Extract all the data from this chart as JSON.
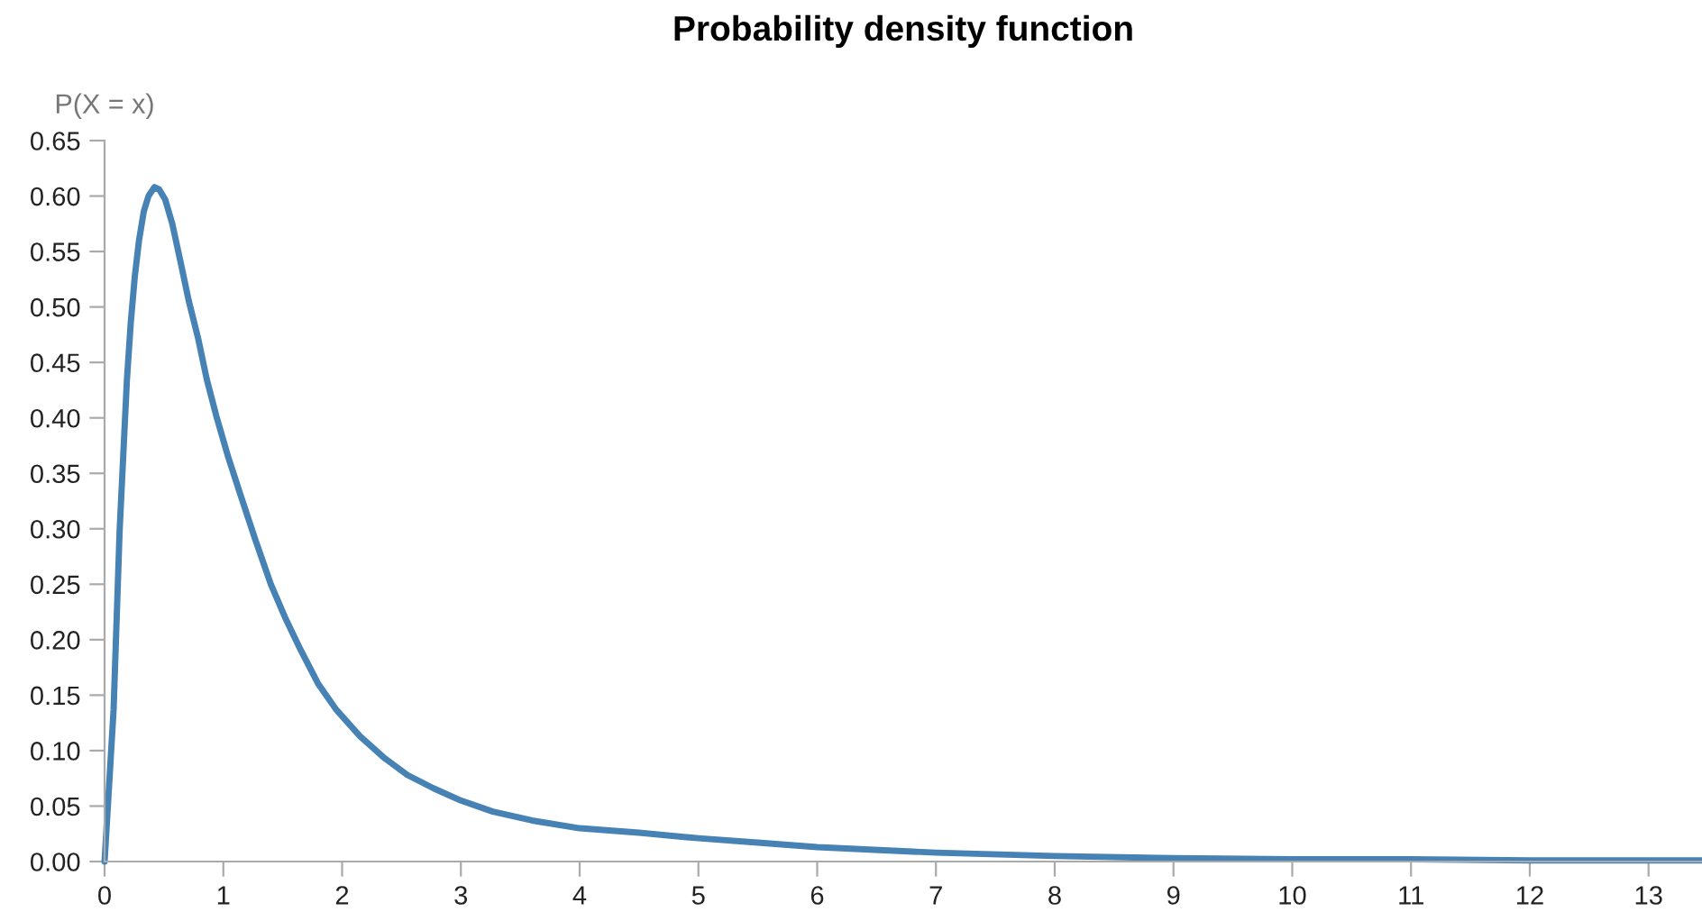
{
  "chart_data": {
    "type": "line",
    "title": "Probability density function",
    "ylabel": "P(X = x)",
    "series": [
      {
        "color": "#4682b4",
        "x": [
          0,
          0.076,
          0.127,
          0.188,
          0.22,
          0.254,
          0.29,
          0.33,
          0.37,
          0.42,
          0.46,
          0.51,
          0.57,
          0.635,
          0.71,
          0.787,
          0.86,
          0.94,
          1.04,
          1.14,
          1.27,
          1.4,
          1.52,
          1.65,
          1.8,
          1.95,
          2.15,
          2.36,
          2.55,
          2.77,
          3.0,
          3.27,
          3.6,
          4,
          4.5,
          5,
          5.5,
          6,
          7,
          8,
          9,
          10,
          11,
          12,
          13,
          13.45
        ],
        "values": [
          0,
          0.137,
          0.299,
          0.434,
          0.485,
          0.527,
          0.56,
          0.586,
          0.6,
          0.608,
          0.606,
          0.597,
          0.575,
          0.543,
          0.505,
          0.472,
          0.435,
          0.402,
          0.365,
          0.332,
          0.29,
          0.25,
          0.22,
          0.191,
          0.16,
          0.137,
          0.113,
          0.093,
          0.078,
          0.066,
          0.055,
          0.045,
          0.037,
          0.03,
          0.026,
          0.021,
          0.017,
          0.013,
          0.008,
          0.005,
          0.003,
          0.002,
          0.002,
          0.001,
          0.001,
          0.001
        ]
      }
    ],
    "xlim": [
      0,
      13.45
    ],
    "xticks": [
      0,
      1,
      2,
      3,
      4,
      5,
      6,
      7,
      8,
      9,
      10,
      11,
      12,
      13
    ],
    "ylim": [
      0,
      0.65
    ],
    "yticks": [
      {
        "value": 0,
        "label": "0.00"
      },
      {
        "value": 0.05,
        "label": "0.05"
      },
      {
        "value": 0.1,
        "label": "0.10"
      },
      {
        "value": 0.15,
        "label": "0.15"
      },
      {
        "value": 0.2,
        "label": "0.20"
      },
      {
        "value": 0.25,
        "label": "0.25"
      },
      {
        "value": 0.3,
        "label": "0.30"
      },
      {
        "value": 0.35,
        "label": "0.35"
      },
      {
        "value": 0.4,
        "label": "0.40"
      },
      {
        "value": 0.45,
        "label": "0.45"
      },
      {
        "value": 0.5,
        "label": "0.50"
      },
      {
        "value": 0.55,
        "label": "0.55"
      },
      {
        "value": 0.6,
        "label": "0.60"
      },
      {
        "value": 0.65,
        "label": "0.65"
      }
    ],
    "grid": false
  }
}
